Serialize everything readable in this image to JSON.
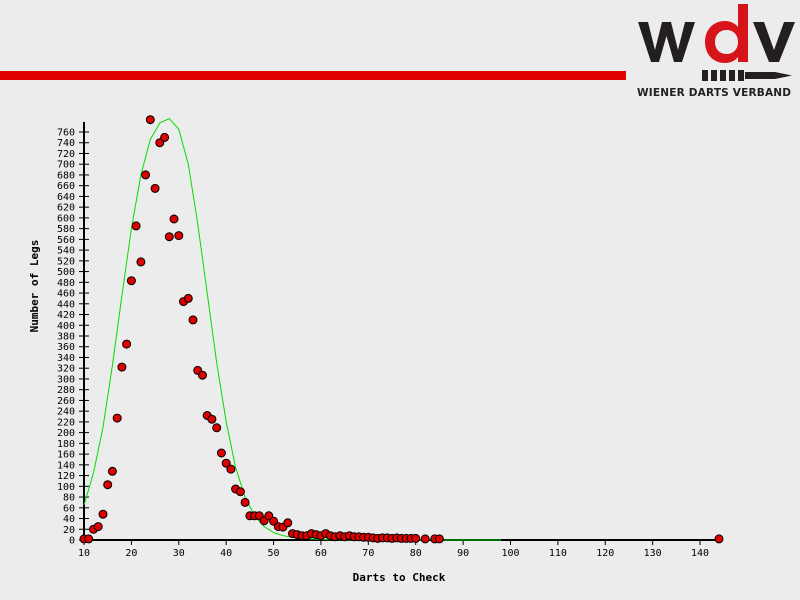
{
  "brand": {
    "logo_text": "wdv",
    "subtitle": "WIENER DARTS VERBAND",
    "colors": {
      "dark": "#231f20",
      "red": "#d7141a",
      "bar": "#e00000",
      "background": "#ececec"
    }
  },
  "chart_data": {
    "type": "scatter",
    "title": "",
    "xlabel": "Darts to Check",
    "ylabel": "Number of Legs",
    "xlim": [
      10,
      145
    ],
    "ylim": [
      0,
      770
    ],
    "xticks": [
      10,
      20,
      30,
      40,
      50,
      60,
      70,
      80,
      90,
      100,
      110,
      120,
      130,
      140
    ],
    "yticks": [
      0,
      20,
      40,
      60,
      80,
      100,
      120,
      140,
      160,
      180,
      200,
      220,
      240,
      260,
      280,
      300,
      320,
      340,
      360,
      380,
      400,
      420,
      440,
      460,
      480,
      500,
      520,
      540,
      560,
      580,
      600,
      620,
      640,
      660,
      680,
      700,
      720,
      740,
      760
    ],
    "grid": false,
    "series": [
      {
        "kind": "points",
        "color": "#dd0000",
        "points": [
          [
            10,
            2
          ],
          [
            11,
            2
          ],
          [
            12,
            20
          ],
          [
            13,
            25
          ],
          [
            14,
            48
          ],
          [
            15,
            103
          ],
          [
            16,
            128
          ],
          [
            17,
            227
          ],
          [
            18,
            322
          ],
          [
            19,
            365
          ],
          [
            20,
            483
          ],
          [
            21,
            585
          ],
          [
            22,
            518
          ],
          [
            23,
            680
          ],
          [
            24,
            783
          ],
          [
            25,
            655
          ],
          [
            26,
            740
          ],
          [
            27,
            750
          ],
          [
            28,
            565
          ],
          [
            29,
            598
          ],
          [
            30,
            567
          ],
          [
            31,
            444
          ],
          [
            32,
            450
          ],
          [
            33,
            410
          ],
          [
            34,
            316
          ],
          [
            35,
            307
          ],
          [
            36,
            232
          ],
          [
            37,
            225
          ],
          [
            38,
            209
          ],
          [
            39,
            162
          ],
          [
            40,
            143
          ],
          [
            41,
            132
          ],
          [
            42,
            95
          ],
          [
            43,
            90
          ],
          [
            44,
            70
          ],
          [
            45,
            45
          ],
          [
            46,
            45
          ],
          [
            47,
            45
          ],
          [
            48,
            36
          ],
          [
            49,
            45
          ],
          [
            50,
            35
          ],
          [
            51,
            25
          ],
          [
            52,
            24
          ],
          [
            53,
            32
          ],
          [
            54,
            12
          ],
          [
            55,
            10
          ],
          [
            56,
            8
          ],
          [
            57,
            8
          ],
          [
            58,
            12
          ],
          [
            59,
            10
          ],
          [
            60,
            8
          ],
          [
            61,
            12
          ],
          [
            62,
            8
          ],
          [
            63,
            6
          ],
          [
            64,
            8
          ],
          [
            65,
            6
          ],
          [
            66,
            8
          ],
          [
            67,
            6
          ],
          [
            68,
            6
          ],
          [
            69,
            5
          ],
          [
            70,
            5
          ],
          [
            71,
            4
          ],
          [
            72,
            3
          ],
          [
            73,
            4
          ],
          [
            74,
            4
          ],
          [
            75,
            3
          ],
          [
            76,
            4
          ],
          [
            77,
            3
          ],
          [
            78,
            3
          ],
          [
            79,
            3
          ],
          [
            80,
            3
          ],
          [
            82,
            2
          ],
          [
            84,
            2
          ],
          [
            85,
            2
          ],
          [
            144,
            2
          ]
        ]
      },
      {
        "kind": "curve",
        "color": "#00dd00",
        "points": [
          [
            10,
            65
          ],
          [
            12,
            125
          ],
          [
            14,
            210
          ],
          [
            16,
            325
          ],
          [
            18,
            455
          ],
          [
            20,
            580
          ],
          [
            22,
            680
          ],
          [
            24,
            746
          ],
          [
            26,
            777
          ],
          [
            28,
            785
          ],
          [
            30,
            765
          ],
          [
            32,
            700
          ],
          [
            34,
            590
          ],
          [
            36,
            460
          ],
          [
            38,
            330
          ],
          [
            40,
            220
          ],
          [
            42,
            135
          ],
          [
            44,
            80
          ],
          [
            46,
            45
          ],
          [
            48,
            25
          ],
          [
            50,
            14
          ],
          [
            52,
            8
          ],
          [
            54,
            5
          ],
          [
            56,
            3
          ],
          [
            58,
            2
          ],
          [
            60,
            1
          ],
          [
            65,
            0
          ],
          [
            70,
            0
          ],
          [
            80,
            0
          ],
          [
            90,
            0
          ],
          [
            98,
            0
          ]
        ]
      }
    ]
  }
}
